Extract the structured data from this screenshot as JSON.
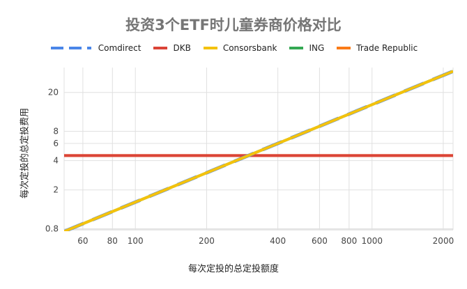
{
  "chart_data": {
    "type": "line",
    "title": "投资3个ETF时儿童券商价格对比",
    "xlabel": "每次定投的总定投额度",
    "ylabel": "每次定投的总定投费用",
    "x_scale": "log",
    "y_scale": "log",
    "xlim": [
      50,
      2200
    ],
    "ylim": [
      0.78,
      36
    ],
    "x_ticks": [
      60,
      80,
      100,
      200,
      400,
      600,
      800,
      1000,
      2000
    ],
    "y_ticks": [
      0.8,
      2,
      4,
      6,
      8,
      20
    ],
    "grid": true,
    "legend_position": "top",
    "series": [
      {
        "name": "Comdirect",
        "color": "#4a86e8",
        "dash": "long-dash",
        "x": [
          50,
          2200
        ],
        "y": [
          0.75,
          33
        ]
      },
      {
        "name": "DKB",
        "color": "#db4437",
        "dash": "solid",
        "x": [
          50,
          2200
        ],
        "y": [
          4.5,
          4.5
        ]
      },
      {
        "name": "Consorsbank",
        "color": "#f4c20d",
        "dash": "solid",
        "x": [
          50,
          2200
        ],
        "y": [
          0.75,
          33
        ]
      },
      {
        "name": "ING",
        "color": "#34a853",
        "dash": "solid",
        "x": [
          50,
          2200
        ],
        "y": [
          0.75,
          33
        ]
      },
      {
        "name": "Trade Republic",
        "color": "#fa7b17",
        "dash": "solid",
        "x": [
          50,
          2200
        ],
        "y": [
          4.5,
          4.5
        ]
      }
    ]
  }
}
